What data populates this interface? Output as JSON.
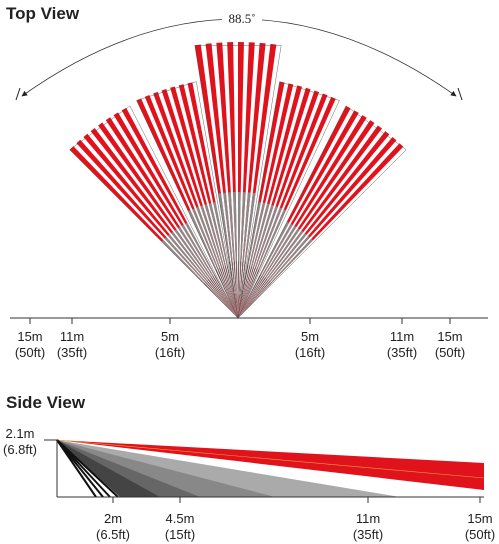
{
  "top_view": {
    "title": "Top View",
    "angle": "88.5˚",
    "labels": [
      {
        "m": "15m",
        "ft": "(50ft)"
      },
      {
        "m": "11m",
        "ft": "(35ft)"
      },
      {
        "m": "5m",
        "ft": "(16ft)"
      },
      {
        "m": "5m",
        "ft": "(16ft)"
      },
      {
        "m": "11m",
        "ft": "(35ft)"
      },
      {
        "m": "15m",
        "ft": "(50ft)"
      }
    ]
  },
  "side_view": {
    "title": "Side View",
    "height": {
      "m": "2.1m",
      "ft": "(6.8ft)"
    },
    "labels": [
      {
        "m": "2m",
        "ft": "(6.5ft)"
      },
      {
        "m": "4.5m",
        "ft": "(15ft)"
      },
      {
        "m": "11m",
        "ft": "(35ft)"
      },
      {
        "m": "15m",
        "ft": "(50ft)"
      }
    ]
  }
}
